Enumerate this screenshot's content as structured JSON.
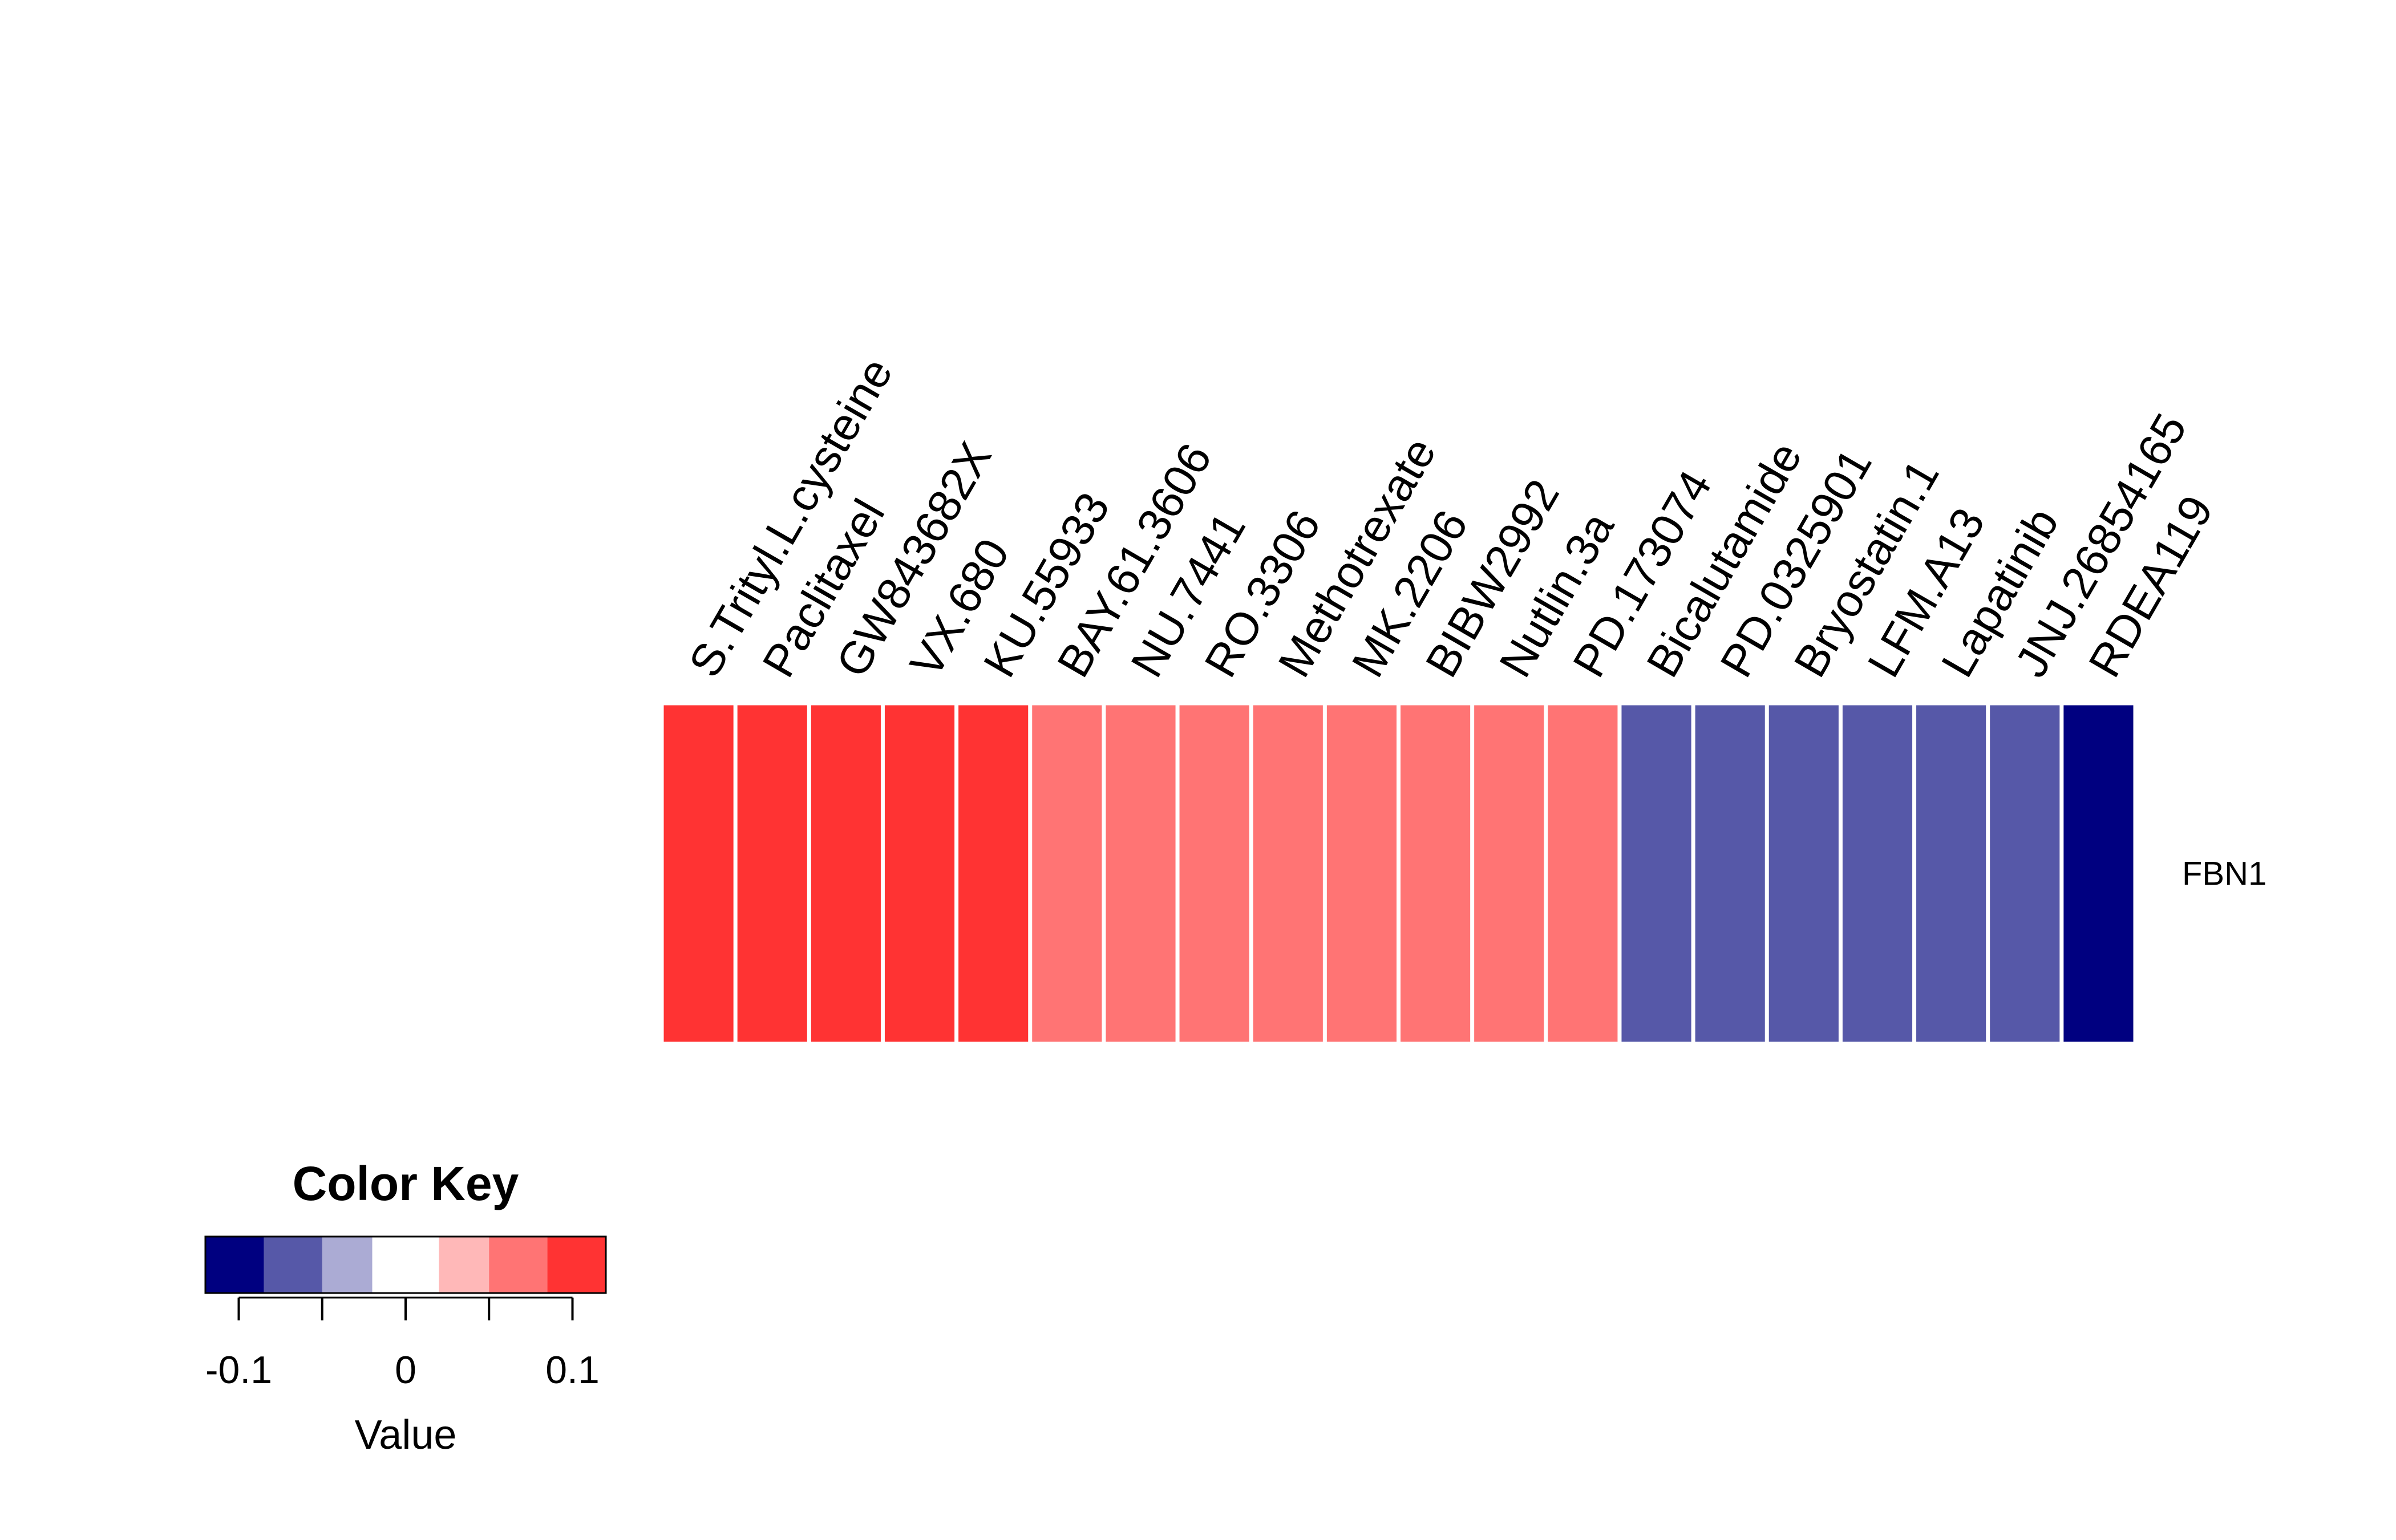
{
  "chart_data": {
    "type": "heatmap",
    "rows": [
      "FBN1"
    ],
    "columns": [
      "S.Trityl.L.cysteine",
      "Paclitaxel",
      "GW843682X",
      "VX.680",
      "KU.55933",
      "BAY.61.3606",
      "NU.7441",
      "RO.3306",
      "Methotrexate",
      "MK.2206",
      "BIBW2992",
      "Nutlin.3a",
      "PD.173074",
      "Bicalutamide",
      "PD.0325901",
      "Bryostatin.1",
      "LFM.A13",
      "Lapatinib",
      "JNJ.26854165",
      "RDEA119"
    ],
    "values": [
      [
        0.11,
        0.11,
        0.11,
        0.11,
        0.11,
        0.07,
        0.07,
        0.07,
        0.07,
        0.07,
        0.07,
        0.07,
        0.07,
        -0.07,
        -0.07,
        -0.07,
        -0.07,
        -0.07,
        -0.07,
        -0.11
      ]
    ],
    "color_key": {
      "title": "Color Key",
      "xlabel": "Value",
      "range": [
        -0.12,
        0.12
      ],
      "breaks": [
        -0.12,
        -0.085,
        -0.05,
        -0.02,
        0.02,
        0.05,
        0.085,
        0.12
      ],
      "colors": [
        "#000080",
        "#5658A8",
        "#ABABD4",
        "#FFFFFF",
        "#FFB8B8",
        "#FF7474",
        "#FF3333"
      ],
      "ticks": [
        -0.1,
        -0.05,
        0,
        0.05,
        0.1
      ],
      "tick_labels": [
        "-0.1",
        "",
        "0",
        "",
        "0.1"
      ]
    }
  }
}
